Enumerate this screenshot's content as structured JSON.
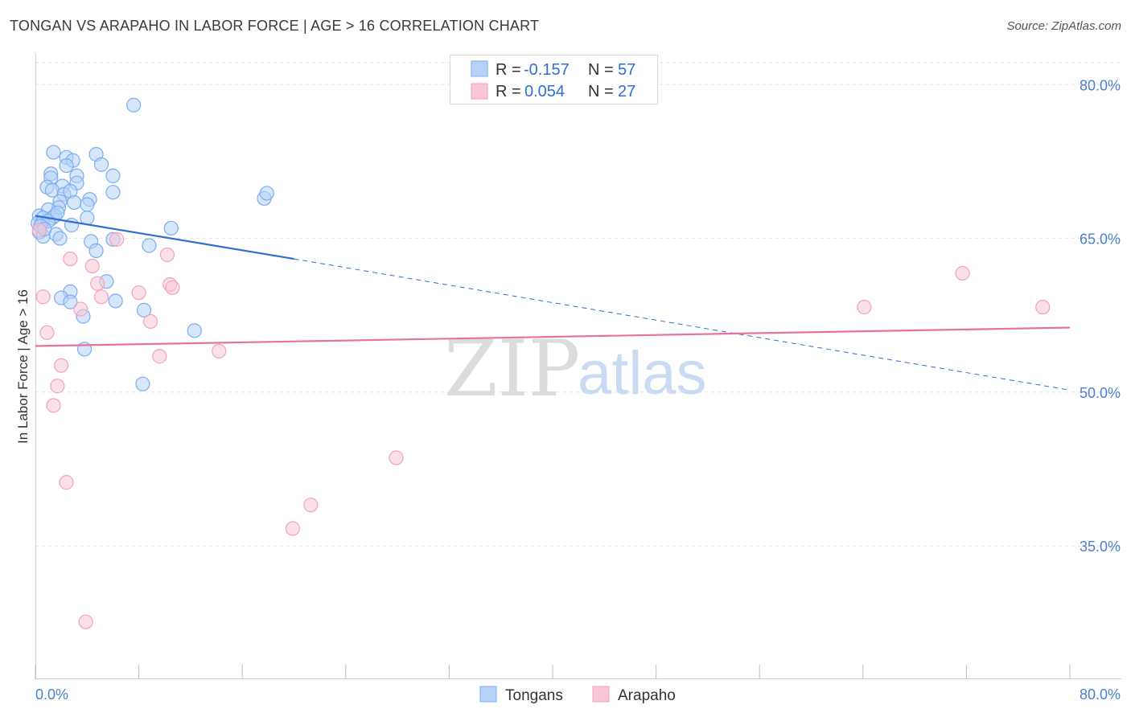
{
  "chart_data": {
    "type": "scatter",
    "title": "TONGAN VS ARAPAHO IN LABOR FORCE | AGE > 16 CORRELATION CHART",
    "source": "Source: ZipAtlas.com",
    "xlabel": "",
    "ylabel": "In Labor Force | Age > 16",
    "xlim": [
      0,
      80
    ],
    "ylim": [
      22,
      83
    ],
    "x_tick_labels": [
      "0.0%",
      "80.0%"
    ],
    "y_ticks": [
      35,
      50,
      65,
      80
    ],
    "y_tick_labels": [
      "35.0%",
      "50.0%",
      "65.0%",
      "80.0%"
    ],
    "grid": true,
    "legend": {
      "position": "top-center",
      "entries": [
        {
          "r_label": "R =",
          "r_value": "-0.157",
          "n_label": "N =",
          "n_value": "57"
        },
        {
          "r_label": "R =",
          "r_value": "0.054",
          "n_label": "N =",
          "n_value": "27"
        }
      ]
    },
    "series": [
      {
        "name": "Tongans",
        "color": "#7aaef0",
        "fill": "#b7d2f6",
        "trend_color": "#2f6fd0",
        "trend": {
          "x0": 0,
          "y0": 67.2,
          "x1": 20,
          "y1": 63.0,
          "dashed_to_x": 80,
          "dashed_to_y": 50.2
        },
        "points": [
          [
            7.6,
            78.0
          ],
          [
            1.4,
            73.4
          ],
          [
            2.4,
            72.9
          ],
          [
            4.7,
            73.2
          ],
          [
            2.9,
            72.6
          ],
          [
            5.1,
            72.2
          ],
          [
            2.4,
            72.1
          ],
          [
            1.2,
            71.3
          ],
          [
            3.2,
            71.1
          ],
          [
            6.0,
            71.1
          ],
          [
            1.2,
            70.9
          ],
          [
            0.9,
            70.0
          ],
          [
            2.1,
            70.1
          ],
          [
            3.2,
            70.4
          ],
          [
            1.3,
            69.7
          ],
          [
            2.2,
            69.3
          ],
          [
            2.7,
            69.6
          ],
          [
            6.0,
            69.5
          ],
          [
            4.2,
            68.8
          ],
          [
            1.9,
            68.6
          ],
          [
            3.0,
            68.5
          ],
          [
            4.0,
            68.3
          ],
          [
            1.8,
            68.0
          ],
          [
            1.0,
            67.8
          ],
          [
            0.3,
            67.2
          ],
          [
            0.6,
            67.0
          ],
          [
            1.3,
            67.0
          ],
          [
            1.5,
            67.2
          ],
          [
            4.0,
            67.0
          ],
          [
            0.2,
            66.5
          ],
          [
            0.5,
            66.5
          ],
          [
            1.0,
            66.7
          ],
          [
            2.8,
            66.3
          ],
          [
            0.3,
            65.6
          ],
          [
            0.6,
            65.2
          ],
          [
            1.6,
            65.4
          ],
          [
            1.9,
            65.0
          ],
          [
            4.3,
            64.7
          ],
          [
            6.0,
            64.9
          ],
          [
            8.8,
            64.3
          ],
          [
            10.5,
            66.0
          ],
          [
            4.7,
            63.8
          ],
          [
            17.7,
            68.9
          ],
          [
            17.9,
            69.4
          ],
          [
            5.5,
            60.8
          ],
          [
            2.7,
            59.8
          ],
          [
            2.0,
            59.2
          ],
          [
            2.7,
            58.8
          ],
          [
            6.2,
            58.9
          ],
          [
            8.4,
            58.0
          ],
          [
            3.7,
            57.4
          ],
          [
            12.3,
            56.0
          ],
          [
            3.8,
            54.2
          ],
          [
            8.3,
            50.8
          ],
          [
            0.4,
            66.2
          ],
          [
            0.7,
            65.9
          ],
          [
            1.7,
            67.5
          ]
        ]
      },
      {
        "name": "Arapaho",
        "color": "#f3a2bd",
        "fill": "#f9c6d7",
        "trend_color": "#e8739a",
        "trend": {
          "x0": 0,
          "y0": 54.5,
          "x1": 80,
          "y1": 56.3
        },
        "points": [
          [
            6.3,
            64.9
          ],
          [
            2.7,
            63.0
          ],
          [
            10.2,
            63.4
          ],
          [
            4.4,
            62.3
          ],
          [
            4.8,
            60.6
          ],
          [
            10.4,
            60.5
          ],
          [
            10.6,
            60.2
          ],
          [
            8.0,
            59.7
          ],
          [
            0.6,
            59.3
          ],
          [
            5.1,
            59.3
          ],
          [
            3.5,
            58.1
          ],
          [
            8.9,
            56.9
          ],
          [
            0.9,
            55.8
          ],
          [
            14.2,
            54.0
          ],
          [
            9.6,
            53.5
          ],
          [
            2.0,
            52.6
          ],
          [
            1.7,
            50.6
          ],
          [
            1.4,
            48.7
          ],
          [
            27.9,
            43.6
          ],
          [
            2.4,
            41.2
          ],
          [
            21.3,
            39.0
          ],
          [
            19.9,
            36.7
          ],
          [
            3.9,
            27.6
          ],
          [
            71.7,
            61.6
          ],
          [
            64.1,
            58.3
          ],
          [
            77.9,
            58.3
          ],
          [
            0.3,
            65.8
          ]
        ]
      }
    ]
  },
  "watermark": {
    "zip": "ZIP",
    "atlas": "atlas"
  }
}
